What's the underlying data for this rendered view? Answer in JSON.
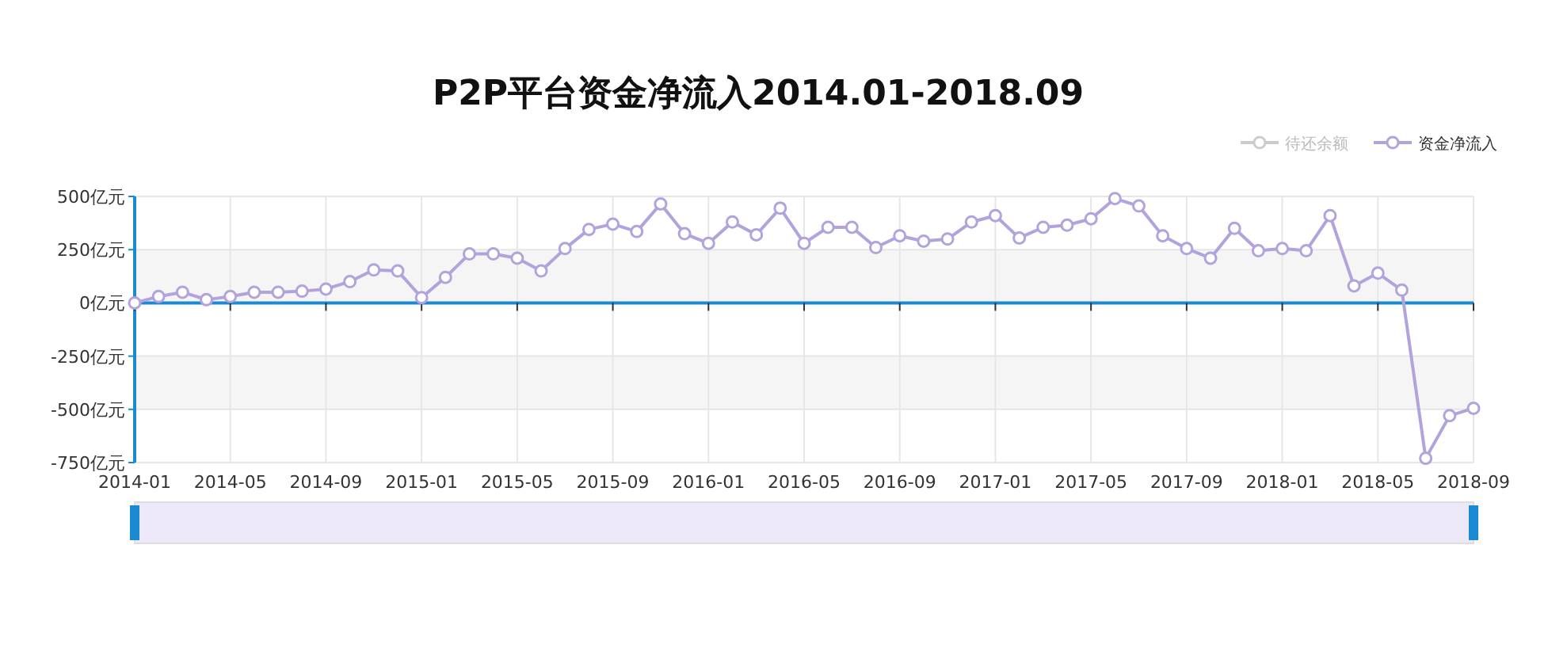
{
  "chart_data": {
    "type": "line",
    "title": "P2P平台资金净流入2014.01-2018.09",
    "categories": [
      "2014-01",
      null,
      null,
      null,
      "2014-05",
      null,
      null,
      null,
      "2014-09",
      null,
      null,
      null,
      "2015-01",
      null,
      null,
      null,
      "2015-05",
      null,
      null,
      null,
      "2015-09",
      null,
      null,
      null,
      "2016-01",
      null,
      null,
      null,
      "2016-05",
      null,
      null,
      null,
      "2016-09",
      null,
      null,
      null,
      "2017-01",
      null,
      null,
      null,
      "2017-05",
      null,
      null,
      null,
      "2017-09",
      null,
      null,
      null,
      "2018-01",
      null,
      null,
      null,
      "2018-05",
      null,
      null,
      null,
      "2018-09"
    ],
    "series": [
      {
        "name": "待还余额",
        "color": "#cccccc",
        "values": [
          null,
          null,
          null,
          null,
          null,
          null,
          null,
          null,
          null,
          null,
          null,
          null,
          null,
          null,
          null,
          null,
          null,
          null,
          null,
          null,
          null,
          null,
          null,
          null,
          null,
          null,
          null,
          null,
          null,
          null,
          null,
          null,
          null,
          null,
          null,
          null,
          null,
          null,
          null,
          null,
          null,
          null,
          null,
          null,
          null,
          null,
          null,
          null,
          null,
          null,
          null,
          null,
          null,
          null,
          null,
          null,
          null
        ]
      },
      {
        "name": "资金净流入",
        "color": "#b3a3dc",
        "values": [
          0,
          30,
          50,
          15,
          30,
          50,
          50,
          55,
          65,
          100,
          155,
          150,
          25,
          120,
          230,
          230,
          210,
          150,
          255,
          345,
          370,
          335,
          465,
          325,
          280,
          380,
          320,
          445,
          280,
          355,
          355,
          260,
          315,
          290,
          300,
          380,
          410,
          305,
          355,
          365,
          395,
          490,
          455,
          315,
          255,
          210,
          350,
          245,
          255,
          245,
          410,
          80,
          140,
          60,
          -730,
          -530,
          -495
        ]
      }
    ],
    "ylim": [
      -750,
      500
    ],
    "yticks": [
      {
        "value": -750,
        "label": "-750亿元"
      },
      {
        "value": -500,
        "label": "-500亿元"
      },
      {
        "value": -250,
        "label": "-250亿元"
      },
      {
        "value": 0,
        "label": "0亿元"
      },
      {
        "value": 250,
        "label": "250亿元"
      },
      {
        "value": 500,
        "label": "500亿元"
      }
    ],
    "ref_lines": [
      {
        "axis": "y",
        "value": 0,
        "color": "#1a8bd3"
      }
    ],
    "grid": true,
    "legend": "top right",
    "marker": "circle",
    "line_style": "solid"
  }
}
